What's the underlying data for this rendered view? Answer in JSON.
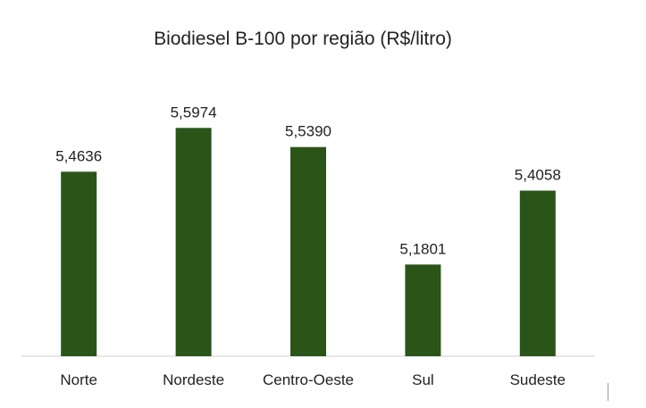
{
  "chart_data": {
    "type": "bar",
    "title": "Biodiesel B-100 por região (R$/litro)",
    "categories": [
      "Norte",
      "Nordeste",
      "Centro-Oeste",
      "Sul",
      "Sudeste"
    ],
    "values": [
      5.4636,
      5.5974,
      5.539,
      5.1801,
      5.4058
    ],
    "value_labels": [
      "5,4636",
      "5,5974",
      "5,5390",
      "5,1801",
      "5,4058"
    ],
    "xlabel": "",
    "ylabel": "",
    "ylim": [
      4.9,
      5.65
    ],
    "y_axis_visible": false,
    "grid": false,
    "legend": "none",
    "colors": {
      "bar": "#2a5418",
      "axis": "#d0d0d0"
    }
  }
}
